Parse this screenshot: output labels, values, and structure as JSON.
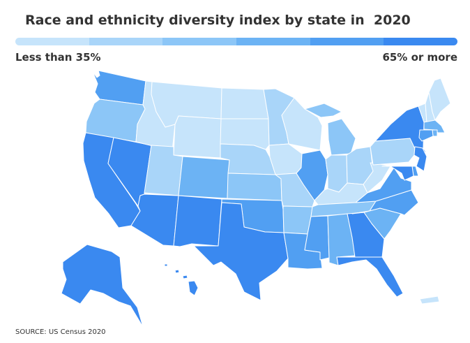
{
  "title": "Race and ethnicity diversity index by state in  2020",
  "legend": {
    "low_label": "Less than 35%",
    "high_label": "65% or more",
    "colors": [
      "#c6e4fb",
      "#a9d5f9",
      "#8cc6f7",
      "#6cb3f4",
      "#519ff2",
      "#3a89f0"
    ]
  },
  "source": "SOURCE: US Census 2020",
  "state_bins": {
    "WA": 4,
    "OR": 2,
    "CA": 5,
    "NV": 5,
    "ID": 0,
    "MT": 0,
    "WY": 0,
    "UT": 1,
    "AZ": 5,
    "CO": 3,
    "NM": 5,
    "ND": 0,
    "SD": 0,
    "NE": 1,
    "KS": 2,
    "OK": 4,
    "TX": 5,
    "MN": 1,
    "IA": 0,
    "MO": 1,
    "AR": 2,
    "LA": 4,
    "WI": 0,
    "IL": 4,
    "MI": 2,
    "IN": 1,
    "OH": 1,
    "KY": 0,
    "TN": 2,
    "MS": 4,
    "AL": 3,
    "GA": 5,
    "FL": 5,
    "SC": 3,
    "NC": 4,
    "VA": 4,
    "WV": 0,
    "PA": 1,
    "NY": 5,
    "VT": 0,
    "NH": 0,
    "ME": 0,
    "MA": 3,
    "RI": 3,
    "CT": 4,
    "NJ": 5,
    "DE": 4,
    "MD": 5,
    "AK": 5,
    "HI": 5,
    "PR": 0
  }
}
